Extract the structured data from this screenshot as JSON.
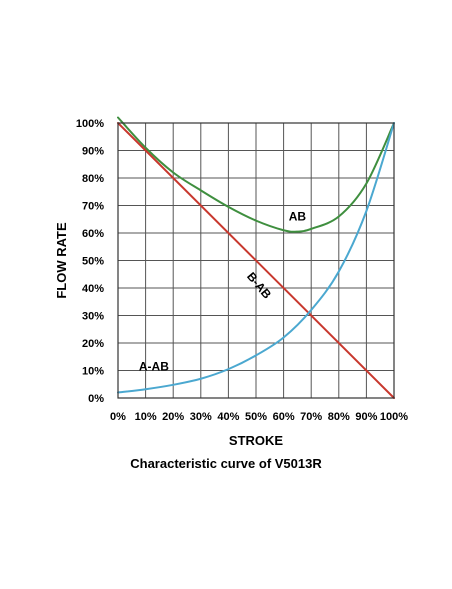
{
  "chart_data": {
    "type": "line",
    "title": "Characteristic curve of V5013R",
    "xlabel": "STROKE",
    "ylabel": "FLOW RATE",
    "xlim": [
      0,
      100
    ],
    "ylim": [
      0,
      100
    ],
    "xticks": [
      "0%",
      "10%",
      "20%",
      "30%",
      "40%",
      "50%",
      "60%",
      "70%",
      "80%",
      "90%",
      "100%"
    ],
    "yticks": [
      "0%",
      "10%",
      "20%",
      "30%",
      "40%",
      "50%",
      "60%",
      "70%",
      "80%",
      "90%",
      "100%"
    ],
    "grid": true,
    "legend": "none",
    "series": [
      {
        "name": "AB",
        "color": "#3f8f3f",
        "points": [
          [
            0,
            102
          ],
          [
            10,
            91
          ],
          [
            20,
            82
          ],
          [
            30,
            75.5
          ],
          [
            40,
            69.5
          ],
          [
            50,
            64.5
          ],
          [
            60,
            61
          ],
          [
            65,
            60.5
          ],
          [
            70,
            61.5
          ],
          [
            80,
            66
          ],
          [
            90,
            78
          ],
          [
            100,
            100
          ]
        ]
      },
      {
        "name": "B-AB",
        "color": "#c8382e",
        "points": [
          [
            0,
            100
          ],
          [
            100,
            0
          ]
        ]
      },
      {
        "name": "A-AB",
        "color": "#4ba8d0",
        "points": [
          [
            0,
            2
          ],
          [
            10,
            3.2
          ],
          [
            20,
            4.8
          ],
          [
            30,
            7
          ],
          [
            40,
            10.5
          ],
          [
            50,
            15.5
          ],
          [
            60,
            22
          ],
          [
            70,
            32
          ],
          [
            80,
            46
          ],
          [
            90,
            68
          ],
          [
            100,
            100
          ]
        ]
      }
    ],
    "annotations": [
      {
        "text": "AB",
        "x": 65,
        "y": 64.5,
        "angle": 0
      },
      {
        "text": "B-AB",
        "x": 50,
        "y": 40,
        "angle": 50
      },
      {
        "text": "A-AB",
        "x": 13,
        "y": 10,
        "angle": 0
      }
    ]
  }
}
